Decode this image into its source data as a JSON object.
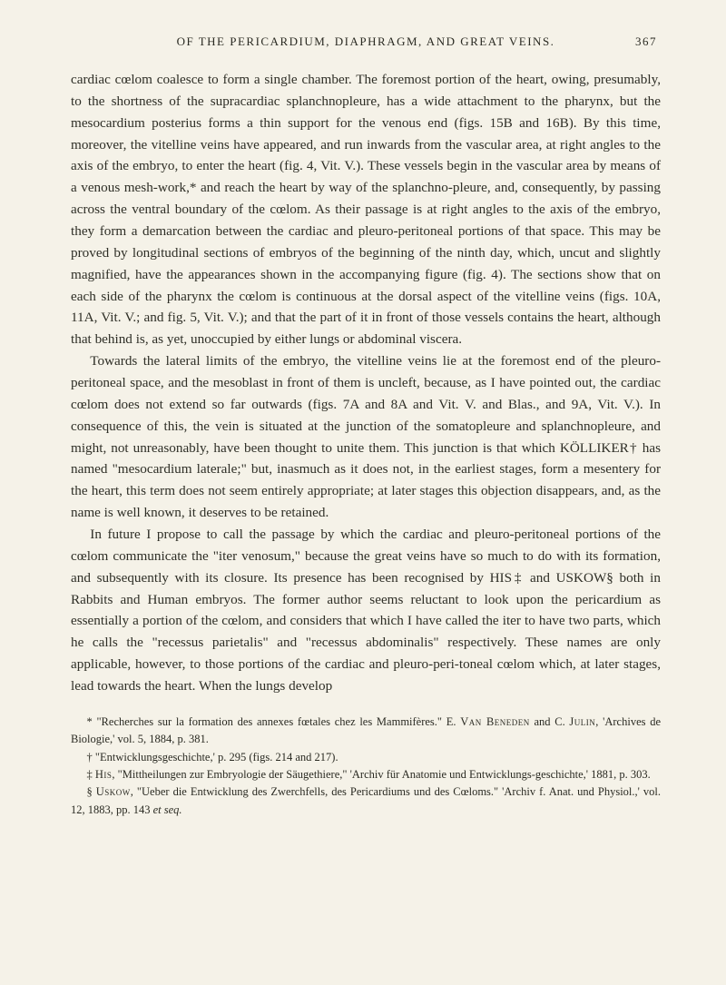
{
  "header": {
    "running_title": "OF THE PERICARDIUM, DIAPHRAGM, AND GREAT VEINS.",
    "page_number": "367"
  },
  "paragraphs": {
    "p1": "cardiac cœlom coalesce to form a single chamber. The foremost portion of the heart, owing, presumably, to the shortness of the supracardiac splanchnopleure, has a wide attachment to the pharynx, but the mesocardium posterius forms a thin support for the venous end (figs. 15B and 16B). By this time, moreover, the vitelline veins have appeared, and run inwards from the vascular area, at right angles to the axis of the embryo, to enter the heart (fig. 4, Vit. V.). These vessels begin in the vascular area by means of a venous mesh-work,* and reach the heart by way of the splanchno-pleure, and, consequently, by passing across the ventral boundary of the cœlom. As their passage is at right angles to the axis of the embryo, they form a demarcation between the cardiac and pleuro-peritoneal portions of that space. This may be proved by longitudinal sections of embryos of the beginning of the ninth day, which, uncut and slightly magnified, have the appearances shown in the accompanying figure (fig. 4). The sections show that on each side of the pharynx the cœlom is continuous at the dorsal aspect of the vitelline veins (figs. 10A, 11A, Vit. V.; and fig. 5, Vit. V.); and that the part of it in front of those vessels contains the heart, although that behind is, as yet, unoccupied by either lungs or abdominal viscera.",
    "p2": "Towards the lateral limits of the embryo, the vitelline veins lie at the foremost end of the pleuro-peritoneal space, and the mesoblast in front of them is uncleft, because, as I have pointed out, the cardiac cœlom does not extend so far outwards (figs. 7A and 8A and Vit. V. and Blas., and 9A, Vit. V.). In consequence of this, the vein is situated at the junction of the somatopleure and splanchnopleure, and might, not unreasonably, have been thought to unite them. This junction is that which KÖLLIKER† has named \"mesocardium laterale;\" but, inasmuch as it does not, in the earliest stages, form a mesentery for the heart, this term does not seem entirely appropriate; at later stages this objection disappears, and, as the name is well known, it deserves to be retained.",
    "p3": "In future I propose to call the passage by which the cardiac and pleuro-peritoneal portions of the cœlom communicate the \"iter venosum,\" because the great veins have so much to do with its formation, and subsequently with its closure. Its presence has been recognised by HIS‡ and USKOW§ both in Rabbits and Human embryos. The former author seems reluctant to look upon the pericardium as essentially a portion of the cœlom, and considers that which I have called the iter to have two parts, which he calls the \"recessus parietalis\" and \"recessus abdominalis\" respectively. These names are only applicable, however, to those portions of the cardiac and pleuro-peri-toneal cœlom which, at later stages, lead towards the heart. When the lungs develop"
  },
  "footnotes": {
    "f1_pre": "* \"Recherches sur la formation des annexes fœtales chez les Mammifères.\" E. ",
    "f1_sc": "Van Beneden",
    "f1_post": " and C. ",
    "f1_sc2": "Julin",
    "f1_end": ", 'Archives de Biologie,' vol. 5, 1884, p. 381.",
    "f2": "† \"Entwicklungsgeschichte,' p. 295 (figs. 214 and 217).",
    "f3_pre": "‡ ",
    "f3_sc": "His",
    "f3_post": ", \"Mittheilungen zur Embryologie der Säugethiere,\" 'Archiv für Anatomie und Entwicklungs-geschichte,' 1881, p. 303.",
    "f4_pre": "§ ",
    "f4_sc": "Uskow",
    "f4_post": ", \"Ueber die Entwicklung des Zwerchfells, des Pericardiums und des Cœloms.\" 'Archiv f. Anat. und Physiol.,' vol. 12, 1883, pp. 143 ",
    "f4_it": "et seq."
  }
}
